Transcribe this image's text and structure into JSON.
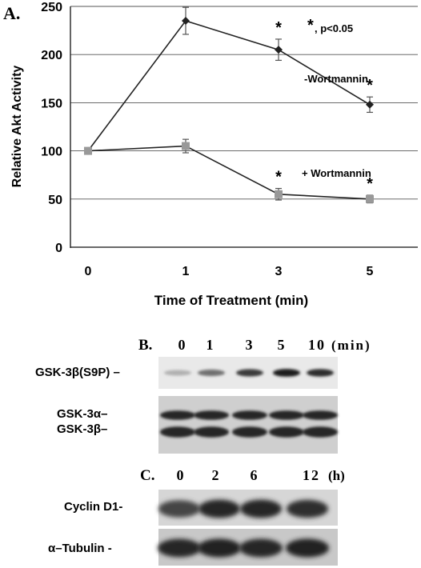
{
  "panel_a": {
    "label": "A.",
    "significance": {
      "star": "*",
      "text": ", p<0.05"
    },
    "series_labels": {
      "minus": "-Wortmannin",
      "plus": "+ Wortmannin"
    },
    "chart_data": {
      "type": "line",
      "xlabel": "Time of Treatment (min)",
      "ylabel": "Relative Akt Activity",
      "categories": [
        "0",
        "1",
        "3",
        "5"
      ],
      "ylim": [
        0,
        250
      ],
      "yticks": [
        0,
        50,
        100,
        150,
        200,
        250
      ],
      "grid": true,
      "series": [
        {
          "name": "-Wortmannin",
          "values": [
            100,
            235,
            205,
            148
          ],
          "errors": [
            0,
            14,
            11,
            8
          ],
          "significant": [
            false,
            true,
            true,
            true
          ],
          "color": "#222222",
          "marker": "diamond"
        },
        {
          "name": "+ Wortmannin",
          "values": [
            100,
            105,
            55,
            50
          ],
          "errors": [
            0,
            7,
            6,
            4
          ],
          "significant": [
            false,
            false,
            true,
            true
          ],
          "color": "#999999",
          "marker": "square"
        }
      ]
    }
  },
  "panel_b": {
    "label": "B.",
    "lanes": [
      "0",
      "1",
      "3",
      "5",
      "10"
    ],
    "unit": "(min)",
    "blots": [
      {
        "labels": [
          "GSK-3β(S9P) –"
        ],
        "intensity": [
          0.25,
          0.55,
          0.8,
          0.95,
          0.85
        ]
      },
      {
        "labels": [
          "GSK-3α–",
          "GSK-3β–"
        ],
        "intensity": [
          0.9,
          0.9,
          0.9,
          0.9,
          0.9
        ]
      }
    ]
  },
  "panel_c": {
    "label": "C.",
    "lanes": [
      "0",
      "2",
      "6",
      "12"
    ],
    "unit": "(h)",
    "blots": [
      {
        "labels": [
          "Cyclin D1-"
        ],
        "intensity": [
          0.75,
          0.9,
          0.9,
          0.85
        ]
      },
      {
        "labels": [
          "α–Tubulin -"
        ],
        "intensity": [
          0.9,
          0.92,
          0.9,
          0.92
        ]
      }
    ]
  }
}
